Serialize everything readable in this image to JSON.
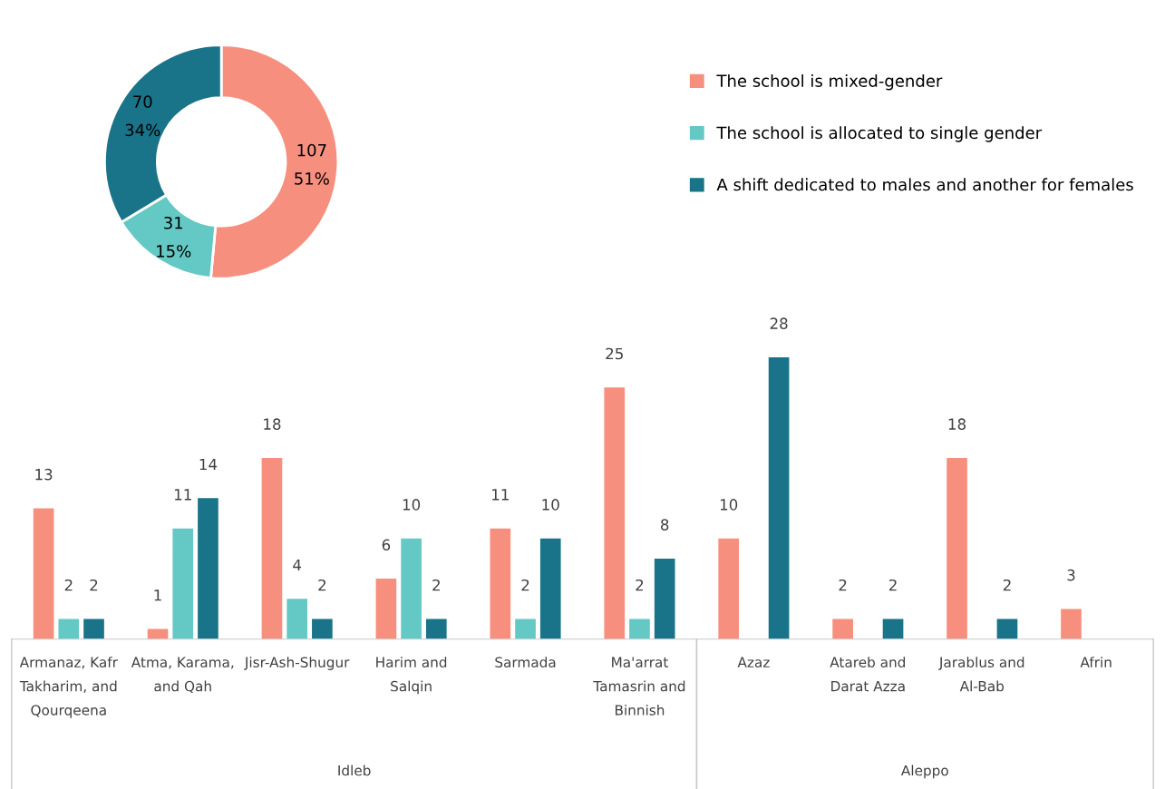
{
  "chart_data": [
    {
      "type": "donut",
      "categories": [
        "The school is mixed-gender",
        "The school is allocated to single gender",
        "A shift dedicated to males and another for females"
      ],
      "values": [
        107,
        31,
        70
      ],
      "colors": [
        "#f78f7f",
        "#64c8c4",
        "#1a7489"
      ],
      "value_labels": [
        "107\n51%",
        "31\n15%",
        "70\n34%"
      ],
      "legend": "right"
    },
    {
      "type": "bar",
      "categories": [
        "Armanaz, Kafr Takharim, and Qourqeena",
        "Atma, Karama, and Qah",
        "Jisr-Ash-Shugur",
        "Harim and Salqin",
        "Sarmada",
        "Ma'arrat Tamasrin and Binnish",
        "Azaz",
        "Atareb and Darat Azza",
        "Jarablus and Al-Bab",
        "Afrin"
      ],
      "series": [
        {
          "color": "#f78f7f",
          "values": [
            13,
            1,
            18,
            6,
            11,
            25,
            10,
            2,
            18,
            3
          ]
        },
        {
          "color": "#64c8c4",
          "values": [
            2,
            11,
            4,
            10,
            2,
            2,
            null,
            null,
            null,
            null
          ]
        },
        {
          "color": "#1a7489",
          "values": [
            2,
            14,
            2,
            2,
            10,
            8,
            28,
            2,
            2,
            null
          ]
        }
      ],
      "data_labels": true,
      "annotations": [
        "Idleb",
        "Aleppo"
      ]
    }
  ]
}
